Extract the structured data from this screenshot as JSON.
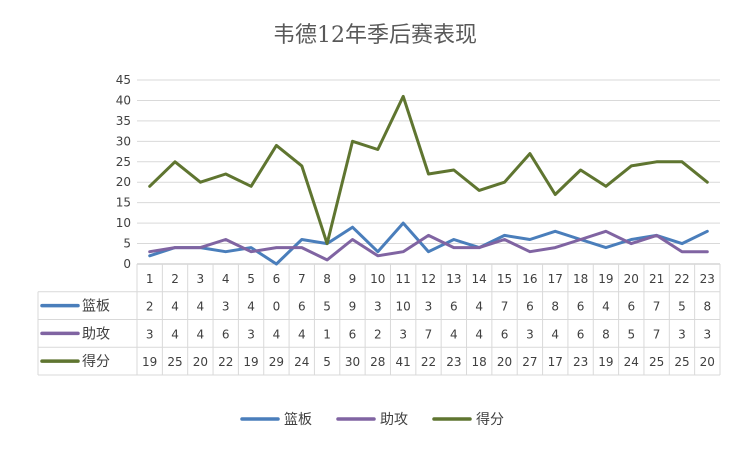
{
  "chart_data": {
    "type": "line",
    "title": "韦德12年季后赛表现",
    "categories": [
      "1",
      "2",
      "3",
      "4",
      "5",
      "6",
      "7",
      "8",
      "9",
      "10",
      "11",
      "12",
      "13",
      "14",
      "15",
      "16",
      "17",
      "18",
      "19",
      "20",
      "21",
      "22",
      "23"
    ],
    "yticks": [
      "0",
      "5",
      "10",
      "15",
      "20",
      "25",
      "30",
      "35",
      "40",
      "45"
    ],
    "ylim": [
      0,
      45
    ],
    "grid": true,
    "legend_position": "bottom",
    "series": [
      {
        "name": "篮板",
        "color": "#4a7ebb",
        "values": [
          2,
          4,
          4,
          3,
          4,
          0,
          6,
          5,
          9,
          3,
          10,
          3,
          6,
          4,
          7,
          6,
          8,
          6,
          4,
          6,
          7,
          5,
          8
        ]
      },
      {
        "name": "助攻",
        "color": "#8064a2",
        "values": [
          3,
          4,
          4,
          6,
          3,
          4,
          4,
          1,
          6,
          2,
          3,
          7,
          4,
          4,
          6,
          3,
          4,
          6,
          8,
          5,
          7,
          3,
          3
        ]
      },
      {
        "name": "得分",
        "color": "#5f7530",
        "values": [
          19,
          25,
          20,
          22,
          19,
          29,
          24,
          5,
          30,
          28,
          41,
          22,
          23,
          18,
          20,
          27,
          17,
          23,
          19,
          24,
          25,
          25,
          20
        ]
      }
    ]
  }
}
